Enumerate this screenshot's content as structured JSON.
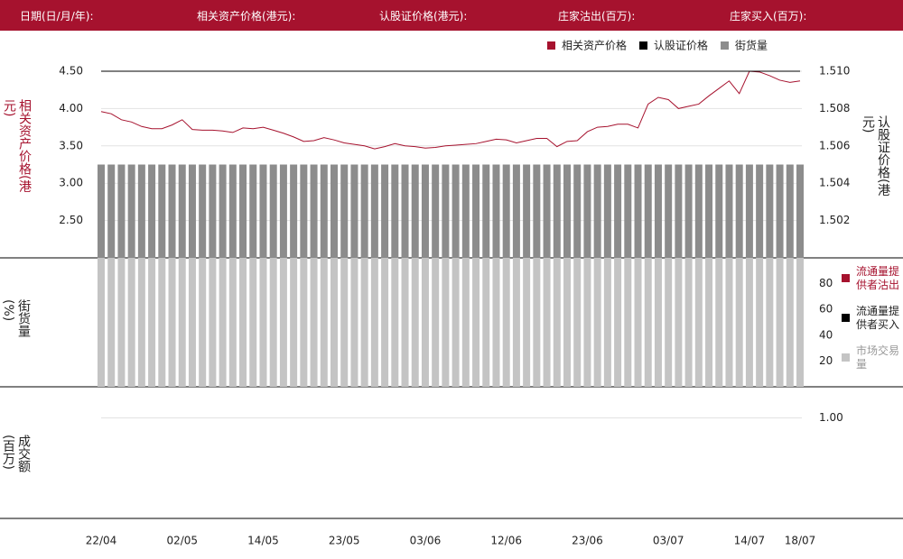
{
  "header": {
    "labels": [
      "日期(日/月/年):",
      "相关资产价格(港元):",
      "认股证价格(港元):",
      "庄家沽出(百万):",
      "庄家买入(百万):"
    ]
  },
  "chart_data": [
    {
      "type": "line",
      "ylabel": "相关资产价格(港元)",
      "y2label": "认股证价格(港元)",
      "categories": [
        "22/04",
        null,
        null,
        null,
        null,
        null,
        null,
        null,
        "02/05",
        null,
        null,
        null,
        null,
        null,
        null,
        null,
        "14/05",
        null,
        null,
        null,
        null,
        null,
        null,
        null,
        "23/05",
        null,
        null,
        null,
        null,
        null,
        null,
        null,
        "03/06",
        null,
        null,
        null,
        null,
        null,
        null,
        null,
        "12/06",
        null,
        null,
        null,
        null,
        null,
        null,
        null,
        "23/06",
        null,
        null,
        null,
        null,
        null,
        null,
        null,
        "03/07",
        null,
        null,
        null,
        null,
        null,
        null,
        null,
        "14/07",
        null,
        null,
        null,
        null,
        "18/07"
      ],
      "ylim": [
        2.0,
        4.5
      ],
      "yticks": [
        {
          "value": 2.5,
          "label": "2.50"
        },
        {
          "value": 3.0,
          "label": "3.00"
        },
        {
          "value": 3.5,
          "label": "3.50"
        },
        {
          "value": 4.0,
          "label": "4.00"
        },
        {
          "value": 4.5,
          "label": "4.50"
        }
      ],
      "y2lim": [
        1.5,
        1.51
      ],
      "y2ticks": [
        {
          "value": 1.502,
          "label": "1.502"
        },
        {
          "value": 1.504,
          "label": "1.504"
        },
        {
          "value": 1.506,
          "label": "1.506"
        },
        {
          "value": 1.508,
          "label": "1.508"
        },
        {
          "value": 1.51,
          "label": "1.510"
        }
      ],
      "series": [
        {
          "name": "相关资产价格",
          "color": "#a6122e",
          "values": [
            3.96,
            3.93,
            3.85,
            3.82,
            3.76,
            3.73,
            3.73,
            3.78,
            3.85,
            3.72,
            3.71,
            3.71,
            3.7,
            3.68,
            3.74,
            3.73,
            3.75,
            3.71,
            3.67,
            3.62,
            3.56,
            3.57,
            3.61,
            3.58,
            3.54,
            3.52,
            3.5,
            3.46,
            3.49,
            3.53,
            3.5,
            3.49,
            3.47,
            3.48,
            3.5,
            3.51,
            3.52,
            3.53,
            3.56,
            3.59,
            3.58,
            3.54,
            3.57,
            3.6,
            3.6,
            3.49,
            3.56,
            3.57,
            3.69,
            3.75,
            3.76,
            3.79,
            3.79,
            3.74,
            4.06,
            4.15,
            4.12,
            4.0,
            4.03,
            4.06,
            4.17,
            4.27,
            4.37,
            4.2,
            4.5,
            4.49,
            4.44,
            4.38,
            4.35,
            4.37
          ]
        },
        {
          "name": "认股证价格",
          "color": "#000000",
          "axis": "y2",
          "values": [
            1.51,
            1.51,
            1.51,
            1.51,
            1.51,
            1.51,
            1.51,
            1.51,
            1.51,
            1.51,
            1.51,
            1.51,
            1.51,
            1.51,
            1.51,
            1.51,
            1.51,
            1.51,
            1.51,
            1.51,
            1.51,
            1.51,
            1.51,
            1.51,
            1.51,
            1.51,
            1.51,
            1.51,
            1.51,
            1.51,
            1.51,
            1.51,
            1.51,
            1.51,
            1.51,
            1.51,
            1.51,
            1.51,
            1.51,
            1.51,
            1.51,
            1.51,
            1.51,
            1.51,
            1.51,
            1.51,
            1.51,
            1.51,
            1.51,
            1.51,
            1.51,
            1.51,
            1.51,
            1.51,
            1.51,
            1.51,
            1.51,
            1.51,
            1.51,
            1.51,
            1.51,
            1.51,
            1.51,
            1.51,
            1.51,
            1.51,
            1.51,
            1.51,
            1.51,
            1.51
          ]
        },
        {
          "name": "街货量",
          "color": "#8c8c8c",
          "values": [
            3.25,
            3.25,
            3.25,
            3.25,
            3.25,
            3.25,
            3.25,
            3.25,
            3.25,
            3.25,
            3.25,
            3.25,
            3.25,
            3.25,
            3.25,
            3.25,
            3.25,
            3.25,
            3.25,
            3.25,
            3.25,
            3.25,
            3.25,
            3.25,
            3.25,
            3.25,
            3.25,
            3.25,
            3.25,
            3.25,
            3.25,
            3.25,
            3.25,
            3.25,
            3.25,
            3.25,
            3.25,
            3.25,
            3.25,
            3.25,
            3.25,
            3.25,
            3.25,
            3.25,
            3.25,
            3.25,
            3.25,
            3.25,
            3.25,
            3.25,
            3.25,
            3.25,
            3.25,
            3.25,
            3.25,
            3.25,
            3.25,
            3.25,
            3.25,
            3.25,
            3.25,
            3.25,
            3.25,
            3.25,
            3.25,
            3.25,
            3.25,
            3.25,
            3.25,
            3.25
          ]
        }
      ]
    },
    {
      "type": "bar",
      "ylabel": "街货量(%)",
      "ylim": [
        0,
        100
      ],
      "yticks": [
        20,
        40,
        60,
        80
      ],
      "series": [
        {
          "name": "流通量提供者沽出",
          "color": "#a6122e",
          "values": []
        },
        {
          "name": "流通量提供者买入",
          "color": "#000000",
          "values": []
        },
        {
          "name": "市场交易量",
          "color": "#c4c4c4",
          "values": [
            100,
            100,
            100,
            100,
            100,
            100,
            100,
            100,
            100,
            100,
            100,
            100,
            100,
            100,
            100,
            100,
            100,
            100,
            100,
            100,
            100,
            100,
            100,
            100,
            100,
            100,
            100,
            100,
            100,
            100,
            100,
            100,
            100,
            100,
            100,
            100,
            100,
            100,
            100,
            100,
            100,
            100,
            100,
            100,
            100,
            100,
            100,
            100,
            100,
            100,
            100,
            100,
            100,
            100,
            100,
            100,
            100,
            100,
            100,
            100,
            100,
            100,
            100,
            100,
            100,
            100,
            100,
            100,
            100,
            100
          ]
        }
      ]
    },
    {
      "type": "bar",
      "ylabel": "成交额(百万)",
      "ylim": [
        0,
        1.3
      ],
      "yticks": [
        {
          "value": 1.0,
          "label": "1.00"
        }
      ],
      "series": []
    }
  ]
}
